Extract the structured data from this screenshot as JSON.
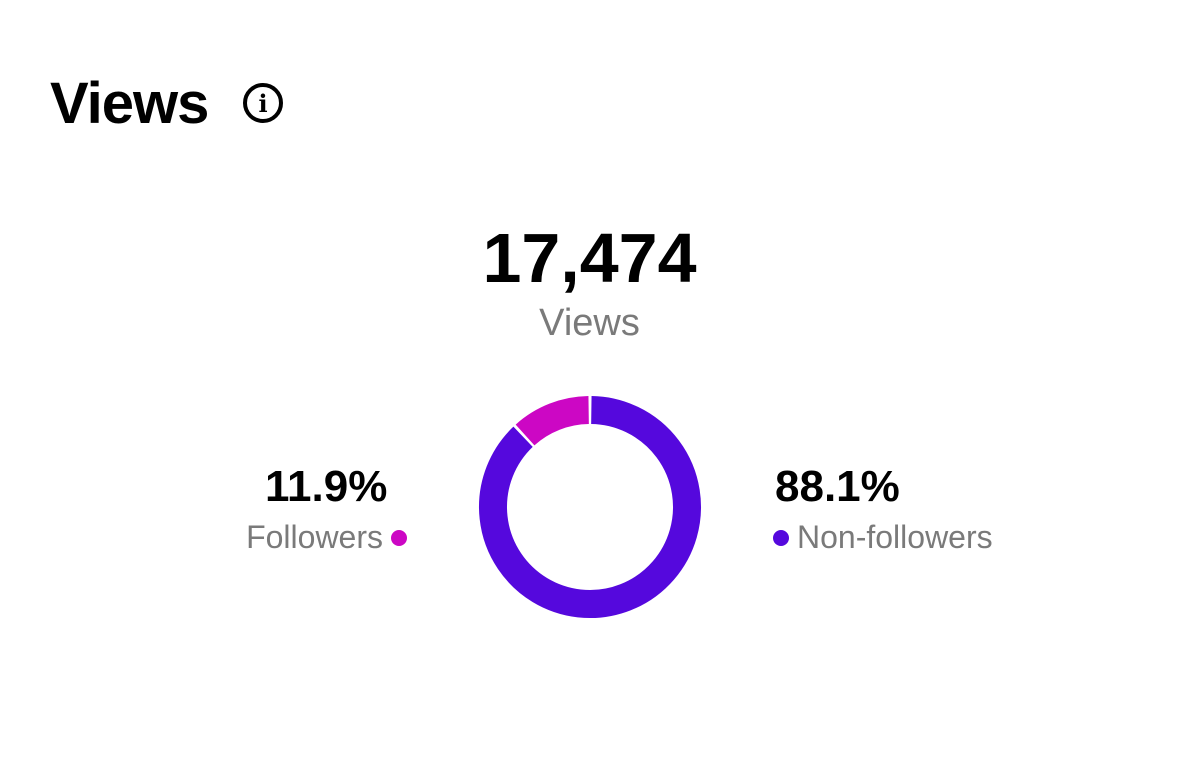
{
  "header": {
    "title": "Views",
    "info_icon": "info-icon"
  },
  "chart_data": {
    "type": "pie",
    "variant": "donut",
    "title": "Views",
    "total": "17,474",
    "total_label": "Views",
    "slices": [
      {
        "name": "Non-followers",
        "value": 88.1,
        "label": "88.1%",
        "color": "#5508DD"
      },
      {
        "name": "Followers",
        "value": 11.9,
        "label": "11.9%",
        "color": "#CC07C4"
      }
    ]
  }
}
